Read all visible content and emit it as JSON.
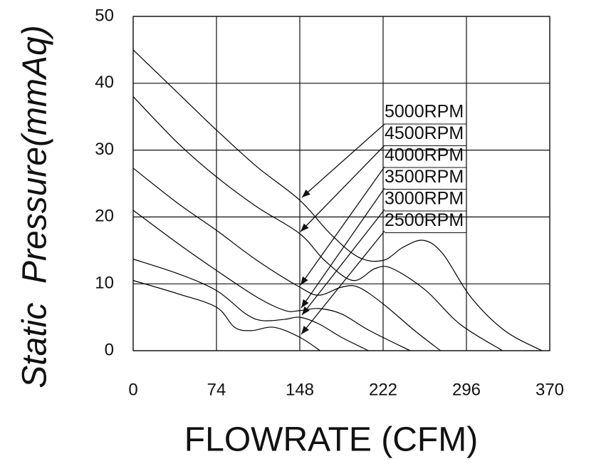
{
  "chart_data": {
    "type": "line",
    "xlabel": "FLOWRATE (CFM)",
    "ylabel": "Static  Pressure(mmAq)",
    "xlim": [
      0,
      370
    ],
    "xticks": [
      0,
      74,
      148,
      222,
      296,
      370
    ],
    "ylim": [
      0,
      50
    ],
    "yticks": [
      0,
      10,
      20,
      30,
      40,
      50
    ],
    "grid": true,
    "series": [
      {
        "name": "5000RPM",
        "color": "#000000",
        "x": [
          0,
          40,
          74,
          110,
          148,
          175,
          200,
          222,
          240,
          258,
          275,
          300,
          330,
          363
        ],
        "values": [
          45,
          38.5,
          33,
          27.5,
          22.5,
          17.5,
          14,
          13.5,
          15.5,
          16.5,
          14.5,
          8,
          3,
          0
        ]
      },
      {
        "name": "4500RPM",
        "color": "#000000",
        "x": [
          0,
          40,
          74,
          110,
          148,
          170,
          195,
          215,
          230,
          260,
          290,
          328
        ],
        "values": [
          38,
          31,
          26,
          21.5,
          17.5,
          13.5,
          10.5,
          12.3,
          12.3,
          9,
          4,
          0
        ]
      },
      {
        "name": "4000RPM",
        "color": "#000000",
        "x": [
          0,
          40,
          74,
          110,
          148,
          165,
          185,
          200,
          222,
          250,
          273
        ],
        "values": [
          27.3,
          22,
          18,
          13.5,
          9.5,
          8.3,
          9.5,
          9.5,
          7,
          3,
          0
        ]
      },
      {
        "name": "3500RPM",
        "color": "#000000",
        "x": [
          0,
          40,
          74,
          110,
          135,
          148,
          165,
          185,
          210,
          246
        ],
        "values": [
          21,
          16,
          12,
          8,
          6,
          6,
          6.3,
          5.5,
          3,
          0
        ]
      },
      {
        "name": "3000RPM",
        "color": "#000000",
        "x": [
          0,
          40,
          74,
          100,
          115,
          135,
          148,
          165,
          185,
          209
        ],
        "values": [
          13.7,
          11.5,
          9,
          5.5,
          4.5,
          4.7,
          5,
          4,
          2,
          0
        ]
      },
      {
        "name": "2500RPM",
        "color": "#000000",
        "x": [
          0,
          40,
          74,
          90,
          105,
          125,
          148,
          166
        ],
        "values": [
          10.5,
          8.5,
          6.5,
          3.5,
          3,
          3.5,
          2,
          0
        ]
      }
    ]
  }
}
